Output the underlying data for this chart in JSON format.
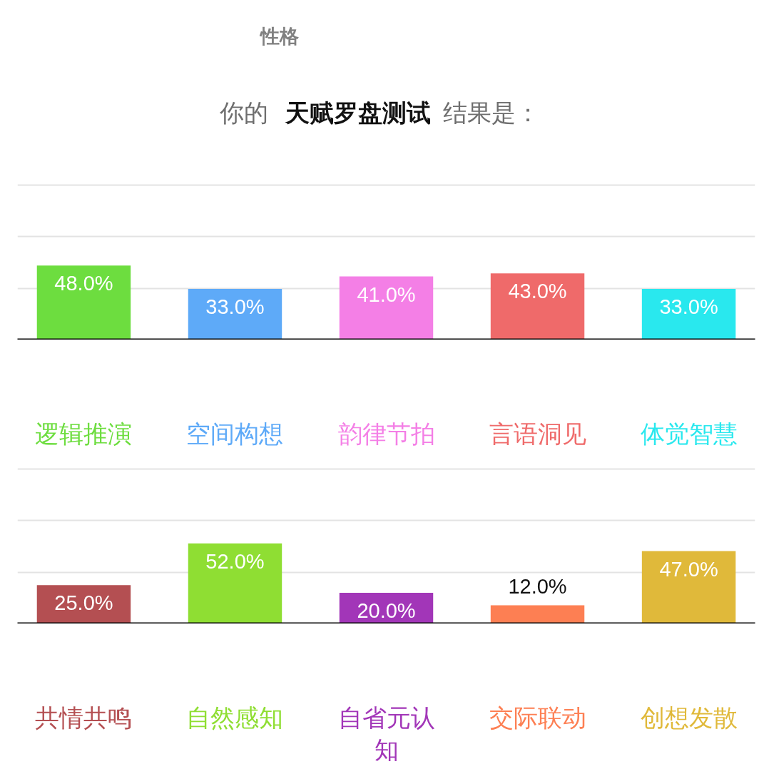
{
  "chart_data": [
    {
      "type": "bar",
      "title": "你的 天赋罗盘测试 结果是：",
      "annotations": [
        "性格"
      ],
      "categories": [
        "逻辑推演",
        "空间构想",
        "韵律节拍",
        "言语洞见",
        "体觉智慧"
      ],
      "values": [
        48,
        33,
        41,
        43,
        33
      ],
      "colors": [
        "#6ddd3f",
        "#5eaaf8",
        "#f47fe6",
        "#ef6a6a",
        "#29e8ee"
      ],
      "value_labels": [
        "48.0%",
        "33.0%",
        "41.0%",
        "43.0%",
        "33.0%"
      ],
      "ylim": [
        0,
        100
      ],
      "yticks": [
        {
          "value": 33.3,
          "label": null
        },
        {
          "value": 66.7,
          "label": null
        },
        {
          "value": 100,
          "label": null
        }
      ],
      "grid": "y",
      "tick_labels": "x"
    },
    {
      "type": "bar",
      "categories": [
        "共情共鸣",
        "自然感知",
        "自省元认知",
        "交际联动",
        "创想发散"
      ],
      "values": [
        25,
        52,
        20,
        12,
        47
      ],
      "colors": [
        "#b44f52",
        "#8fde33",
        "#a236b8",
        "#fd7f53",
        "#e0b93a"
      ],
      "value_labels": [
        "25.0%",
        "52.0%",
        "20.0%",
        "12.0%",
        "47.0%"
      ],
      "ylim": [
        0,
        100
      ],
      "yticks": [
        {
          "value": 33.3,
          "label": null
        },
        {
          "value": 66.7,
          "label": null
        },
        {
          "value": 100,
          "label": null
        }
      ],
      "grid": "y",
      "tick_labels": "x"
    }
  ]
}
